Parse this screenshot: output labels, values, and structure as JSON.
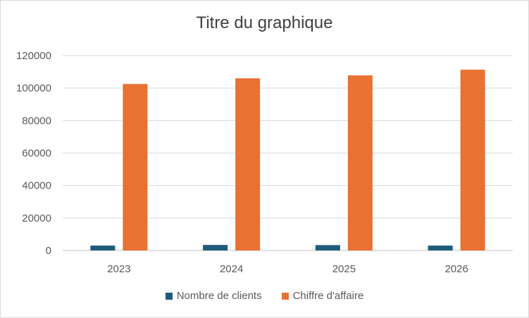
{
  "chart_data": {
    "type": "bar",
    "title": "Titre du graphique",
    "categories": [
      "2023",
      "2024",
      "2025",
      "2026"
    ],
    "series": [
      {
        "name": "Nombre de clients",
        "color": "#1f5b7a",
        "values": [
          3000,
          3400,
          3300,
          3000
        ]
      },
      {
        "name": "Chiffre d'affaire",
        "color": "#e97132",
        "values": [
          102500,
          106000,
          107800,
          111300
        ]
      }
    ],
    "ylim": [
      0,
      120000
    ],
    "yticks": [
      "0",
      "20000",
      "40000",
      "60000",
      "80000",
      "100000",
      "120000"
    ],
    "grid": true,
    "legend": "bottom"
  }
}
